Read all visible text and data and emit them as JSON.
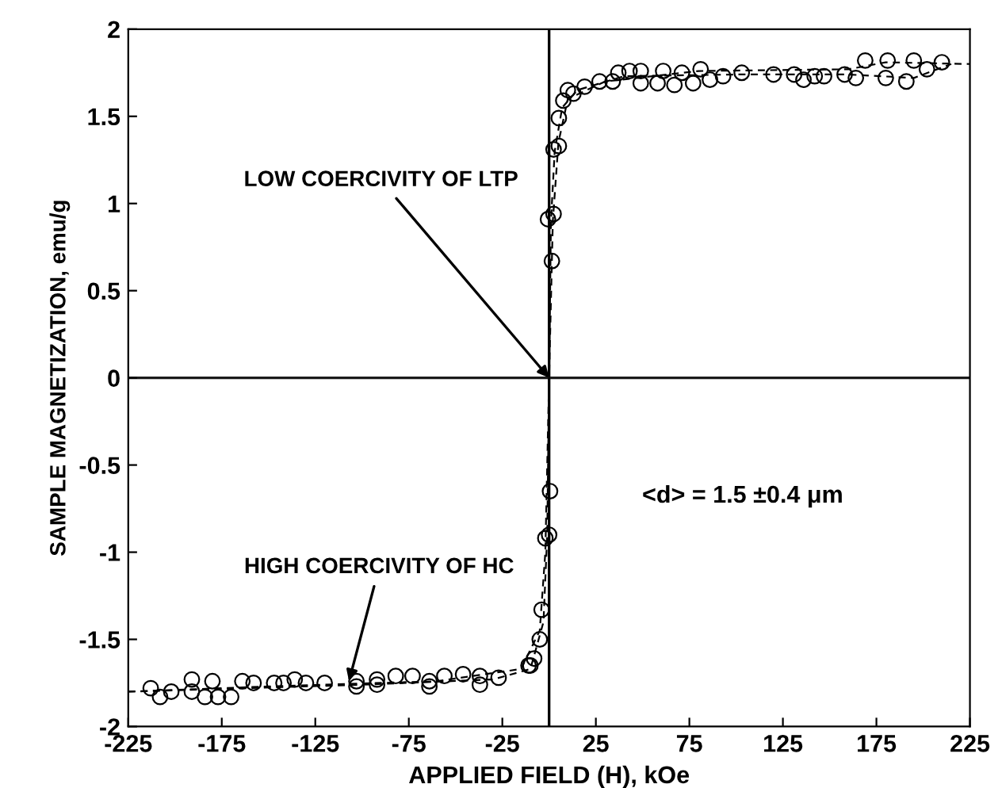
{
  "chart_data": {
    "type": "scatter",
    "xlabel": "APPLIED FIELD (H), kOe",
    "ylabel": "SAMPLE MAGNETIZATION, emu/g",
    "xlim": [
      -225,
      225
    ],
    "xticks": [
      -225,
      -175,
      -125,
      -75,
      -25,
      25,
      75,
      125,
      175,
      225
    ],
    "ylim": [
      -2,
      2
    ],
    "yticks": [
      -2,
      -1.5,
      -1,
      -0.5,
      0,
      0.5,
      1,
      1.5,
      2
    ],
    "grid": false,
    "legend": false,
    "ref_lines": [
      {
        "axis": "x",
        "value": 0,
        "color": "#000000"
      },
      {
        "axis": "y",
        "value": 0,
        "color": "#1a1a1a"
      }
    ],
    "annotations": [
      {
        "text": "LOW COERCIVITY OF LTP",
        "x": 0,
        "y": 0
      },
      {
        "text": "HIGH COERCIVITY OF HC",
        "x": -107,
        "y": -1.74
      },
      "<d> = 1.5 ±0.4 μm"
    ],
    "series": [
      {
        "marker": "circle",
        "color": "#000000",
        "x": [
          -0.6,
          2.4,
          1.5,
          2.4,
          5.2,
          5.2,
          7.6,
          10,
          13,
          19,
          27,
          34,
          37,
          43,
          49,
          49,
          58,
          61,
          67,
          71,
          77,
          81,
          86,
          93,
          103,
          120,
          131,
          136,
          142,
          147,
          158,
          164,
          169,
          180,
          181,
          191,
          195,
          202,
          210,
          -213,
          -208,
          -202,
          -191,
          -191,
          -184,
          -180,
          -177,
          -170,
          -164,
          -158,
          -147,
          -142,
          -136,
          -130,
          -120,
          -103,
          -103,
          -92,
          -92,
          -82,
          -73,
          -64,
          -64,
          -56,
          -46,
          -37,
          -37,
          -27,
          -11,
          -10,
          -8,
          -5,
          -4,
          0,
          -2,
          0.5
        ],
        "values": [
          0.91,
          0.94,
          0.67,
          1.31,
          1.33,
          1.49,
          1.59,
          1.65,
          1.63,
          1.67,
          1.7,
          1.7,
          1.75,
          1.76,
          1.76,
          1.69,
          1.69,
          1.76,
          1.68,
          1.75,
          1.69,
          1.77,
          1.71,
          1.73,
          1.75,
          1.74,
          1.74,
          1.71,
          1.73,
          1.73,
          1.74,
          1.72,
          1.82,
          1.72,
          1.82,
          1.7,
          1.82,
          1.77,
          1.81,
          -1.78,
          -1.83,
          -1.8,
          -1.73,
          -1.8,
          -1.83,
          -1.74,
          -1.83,
          -1.83,
          -1.74,
          -1.75,
          -1.75,
          -1.75,
          -1.73,
          -1.75,
          -1.75,
          -1.74,
          -1.77,
          -1.73,
          -1.76,
          -1.71,
          -1.71,
          -1.74,
          -1.77,
          -1.71,
          -1.7,
          -1.71,
          -1.76,
          -1.72,
          -1.65,
          -1.65,
          -1.61,
          -1.5,
          -1.33,
          -0.9,
          -0.92,
          -0.65
        ]
      },
      {
        "type": "line",
        "marker": "none",
        "line_style": "dashed",
        "color": "#000000",
        "x": [
          -225,
          -150,
          -60,
          -15,
          -5,
          -2,
          0,
          1,
          3,
          7,
          15,
          40,
          100,
          160,
          195,
          215
        ],
        "values": [
          -1.8,
          -1.77,
          -1.74,
          -1.67,
          -1.45,
          -1.0,
          0,
          0.9,
          1.3,
          1.55,
          1.65,
          1.73,
          1.74,
          1.74,
          1.72,
          1.8
        ]
      },
      {
        "type": "line",
        "marker": "none",
        "line_style": "dashed",
        "color": "#000000",
        "x": [
          -225,
          -100,
          -30,
          -10,
          -3,
          -1,
          0,
          2,
          5,
          10,
          30,
          80,
          160,
          180,
          225
        ],
        "values": [
          -1.8,
          -1.76,
          -1.73,
          -1.67,
          -1.4,
          -0.9,
          0,
          0.9,
          1.35,
          1.6,
          1.7,
          1.76,
          1.77,
          1.81,
          1.8
        ]
      }
    ]
  }
}
